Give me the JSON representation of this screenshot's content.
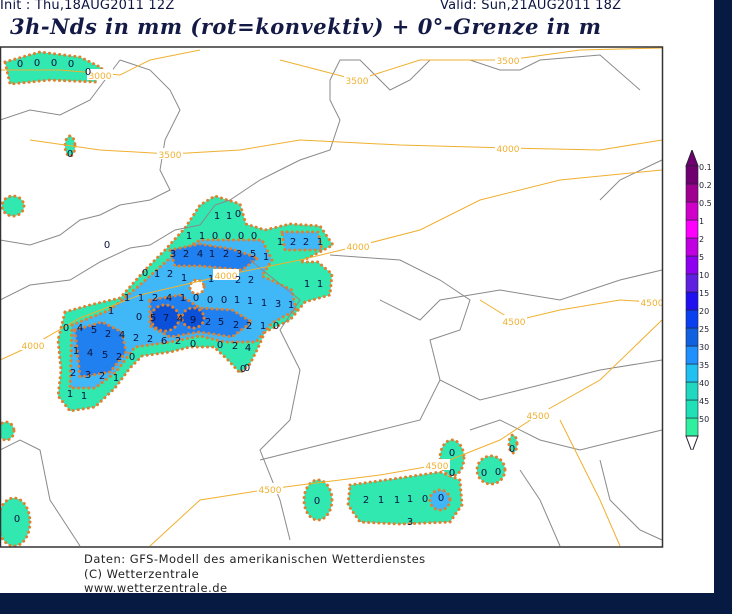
{
  "header": {
    "init": "Init : Thu,18AUG2011  12Z",
    "valid": "Valid: Sun,21AUG2011  18Z",
    "title": "3h-Nds in mm (rot=konvektiv) + 0°-Grenze in m"
  },
  "legend": {
    "levels": [
      "0.1",
      "0.2",
      "0.5",
      "1",
      "2",
      "5",
      "10",
      "15",
      "20",
      "25",
      "30",
      "35",
      "40",
      "45",
      "50"
    ],
    "colors": [
      "#30f0a0",
      "#20e0b8",
      "#20d8c0",
      "#20c0f0",
      "#2090ff",
      "#1060e0",
      "#0a40f0",
      "#2010f0",
      "#6020e0",
      "#9000f0",
      "#c000e0",
      "#ff00ff",
      "#d000c8",
      "#a00090",
      "#700070"
    ]
  },
  "contours": {
    "labels": [
      "3000",
      "3500",
      "3500",
      "3500",
      "4000",
      "4000",
      "4000",
      "4000",
      "4500",
      "4500",
      "4500",
      "4500",
      "4500"
    ],
    "color": "#f0b030"
  },
  "precip_values": [
    "1",
    "1",
    "1",
    "1",
    "0",
    "0",
    "0",
    "0",
    "1",
    "2",
    "2",
    "1",
    "3",
    "2",
    "4",
    "1",
    "2",
    "3",
    "5",
    "1",
    "0",
    "1",
    "2",
    "1",
    "1",
    "2",
    "2",
    "1",
    "1",
    "1",
    "1",
    "2",
    "4",
    "1",
    "0",
    "0",
    "0",
    "1",
    "1",
    "1",
    "3",
    "1",
    "1",
    "0",
    "5",
    "7",
    "4",
    "9",
    "2",
    "5",
    "2",
    "2",
    "1",
    "0",
    "0",
    "4",
    "5",
    "2",
    "4",
    "2",
    "2",
    "6",
    "2",
    "0",
    "0",
    "2",
    "4",
    "1",
    "4",
    "5",
    "2",
    "0",
    "2",
    "3",
    "2",
    "1",
    "1",
    "1",
    "0",
    "0",
    "0",
    "0",
    "0",
    "0",
    "0",
    "0",
    "0",
    "0",
    "0",
    "2",
    "1",
    "1",
    "1",
    "0",
    "0",
    "3",
    "0",
    "0",
    "0",
    "0",
    "0",
    "0",
    "0"
  ],
  "colors": {
    "outline": "#e08030",
    "green": "#30e8b0",
    "lightblue": "#40b8f8",
    "midblue": "#2080f0",
    "darkblue": "#0a50d8",
    "border": "#888888"
  },
  "footer": {
    "line1": "Daten: GFS-Modell des amerikanischen Wetterdienstes",
    "line2": "(C) Wetterzentrale",
    "line3": "www.wetterzentrale.de"
  }
}
